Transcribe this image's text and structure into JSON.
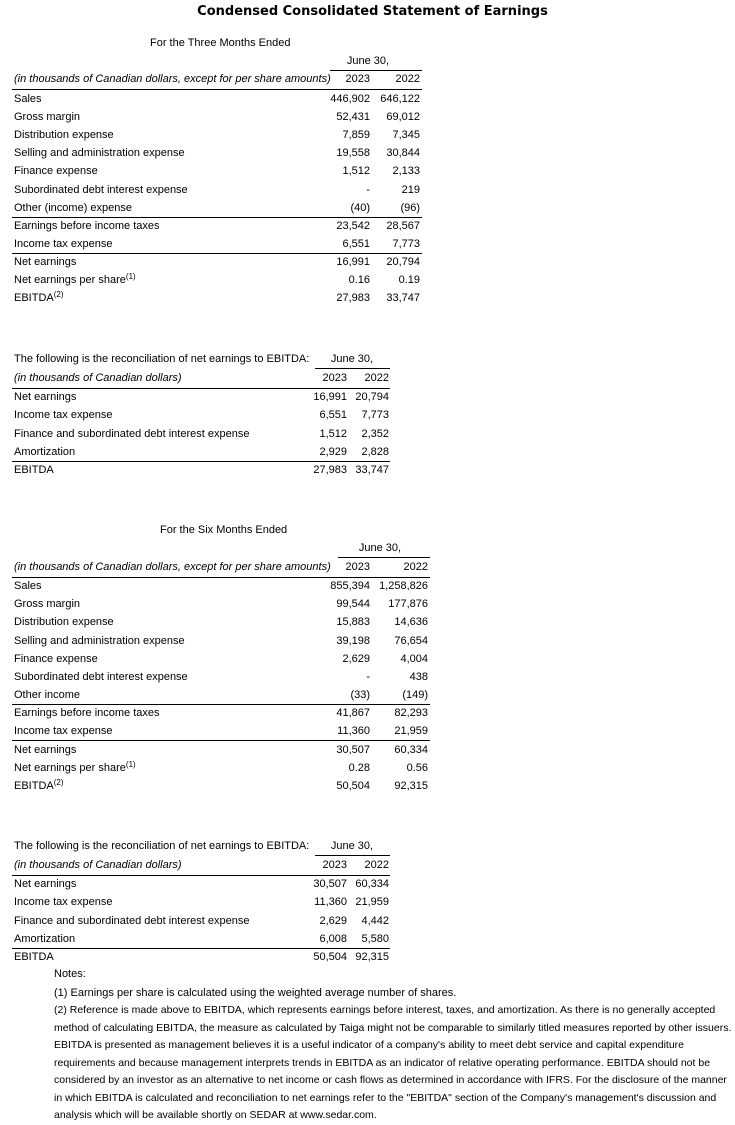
{
  "title": "Condensed Consolidated Statement of Earnings",
  "three_months": {
    "period": "For the Three Months Ended",
    "date_header": "June 30,",
    "units": "(in thousands of Canadian dollars, except for per share amounts)",
    "columns": [
      "2023",
      "2022"
    ],
    "rows": [
      {
        "label": "Sales",
        "values": [
          "446,902",
          "646,122"
        ]
      },
      {
        "label": "Gross margin",
        "values": [
          "52,431",
          "69,012"
        ]
      },
      {
        "label": "Distribution expense",
        "values": [
          "7,859",
          "7,345"
        ]
      },
      {
        "label": "Selling and administration expense",
        "values": [
          "19,558",
          "30,844"
        ]
      },
      {
        "label": "Finance expense",
        "values": [
          "1,512",
          "2,133"
        ]
      },
      {
        "label": "Subordinated debt interest expense",
        "values": [
          "-",
          "219"
        ]
      },
      {
        "label": "Other (income) expense",
        "values": [
          "(40)",
          "(96)"
        ]
      },
      {
        "label": "Earnings before income taxes",
        "values": [
          "23,542",
          "28,567"
        ]
      },
      {
        "label": "Income tax expense",
        "values": [
          "6,551",
          "7,773"
        ]
      },
      {
        "label": "Net earnings",
        "values": [
          "16,991",
          "20,794"
        ]
      },
      {
        "label": "Net earnings per share",
        "note": "(1)",
        "values": [
          "0.16",
          "0.19"
        ]
      },
      {
        "label": "EBITDA",
        "note": "(2)",
        "values": [
          "27,983",
          "33,747"
        ]
      }
    ]
  },
  "reconciliation_three": {
    "intro": "The following is the reconciliation of net earnings to EBITDA:",
    "date_header": "June 30,",
    "units": "(in thousands of Canadian dollars)",
    "columns": [
      "2023",
      "2022"
    ],
    "rows": [
      {
        "label": "Net earnings",
        "values": [
          "16,991",
          "20,794"
        ]
      },
      {
        "label": "Income tax expense",
        "values": [
          "6,551",
          "7,773"
        ]
      },
      {
        "label": "Finance and subordinated debt interest expense",
        "values": [
          "1,512",
          "2,352"
        ]
      },
      {
        "label": "Amortization",
        "values": [
          "2,929",
          "2,828"
        ]
      },
      {
        "label": "EBITDA",
        "values": [
          "27,983",
          "33,747"
        ]
      }
    ]
  },
  "six_months": {
    "period": "For the Six Months Ended",
    "date_header": "June 30,",
    "units": "(in thousands of Canadian dollars, except for per share amounts)",
    "columns": [
      "2023",
      "2022"
    ],
    "rows": [
      {
        "label": "Sales",
        "values": [
          "855,394",
          "1,258,826"
        ]
      },
      {
        "label": "Gross margin",
        "values": [
          "99,544",
          "177,876"
        ]
      },
      {
        "label": "Distribution expense",
        "values": [
          "15,883",
          "14,636"
        ]
      },
      {
        "label": "Selling and administration expense",
        "values": [
          "39,198",
          "76,654"
        ]
      },
      {
        "label": "Finance expense",
        "values": [
          "2,629",
          "4,004"
        ]
      },
      {
        "label": "Subordinated debt interest expense",
        "values": [
          "-",
          "438"
        ]
      },
      {
        "label": "Other income",
        "values": [
          "(33)",
          "(149)"
        ]
      },
      {
        "label": "Earnings before income taxes",
        "values": [
          "41,867",
          "82,293"
        ]
      },
      {
        "label": "Income tax expense",
        "values": [
          "11,360",
          "21,959"
        ]
      },
      {
        "label": "Net earnings",
        "values": [
          "30,507",
          "60,334"
        ]
      },
      {
        "label": "Net earnings per share",
        "note": "(1)",
        "values": [
          "0.28",
          "0.56"
        ]
      },
      {
        "label": "EBITDA",
        "note": "(2)",
        "values": [
          "50,504",
          "92,315"
        ]
      }
    ]
  },
  "reconciliation_six": {
    "intro": "The following is the reconciliation of net earnings to EBITDA:",
    "date_header": "June 30,",
    "units": "(in thousands of Canadian dollars)",
    "columns": [
      "2023",
      "2022"
    ],
    "rows": [
      {
        "label": "Net earnings",
        "values": [
          "30,507",
          "60,334"
        ]
      },
      {
        "label": "Income tax expense",
        "values": [
          "11,360",
          "21,959"
        ]
      },
      {
        "label": "Finance and subordinated debt interest expense",
        "values": [
          "2,629",
          "4,442"
        ]
      },
      {
        "label": "Amortization",
        "values": [
          "6,008",
          "5,580"
        ]
      },
      {
        "label": "EBITDA",
        "values": [
          "50,504",
          "92,315"
        ]
      }
    ]
  },
  "notes": {
    "heading": "Notes:",
    "items": [
      "(1)  Earnings per share is calculated using the weighted average number of shares.",
      "(2)  Reference is made above to EBITDA, which represents earnings before interest, taxes, and amortization. As there is no generally accepted method of calculating EBITDA, the measure as calculated by Taiga might not be comparable to similarly titled measures reported by other issuers. EBITDA is presented as management believes it is a useful indicator of a company's ability to meet debt service and capital expenditure requirements and because management interprets trends in EBITDA as an indicator of relative operating performance. EBITDA should not be considered by an investor as an alternative to net income or cash flows as determined in accordance with IFRS. For the disclosure of the manner in which EBITDA is calculated and reconciliation to net earnings refer to the \"EBITDA\" section of the Company's management's discussion and analysis which will be available shortly on SEDAR at www.sedar.com."
    ]
  }
}
